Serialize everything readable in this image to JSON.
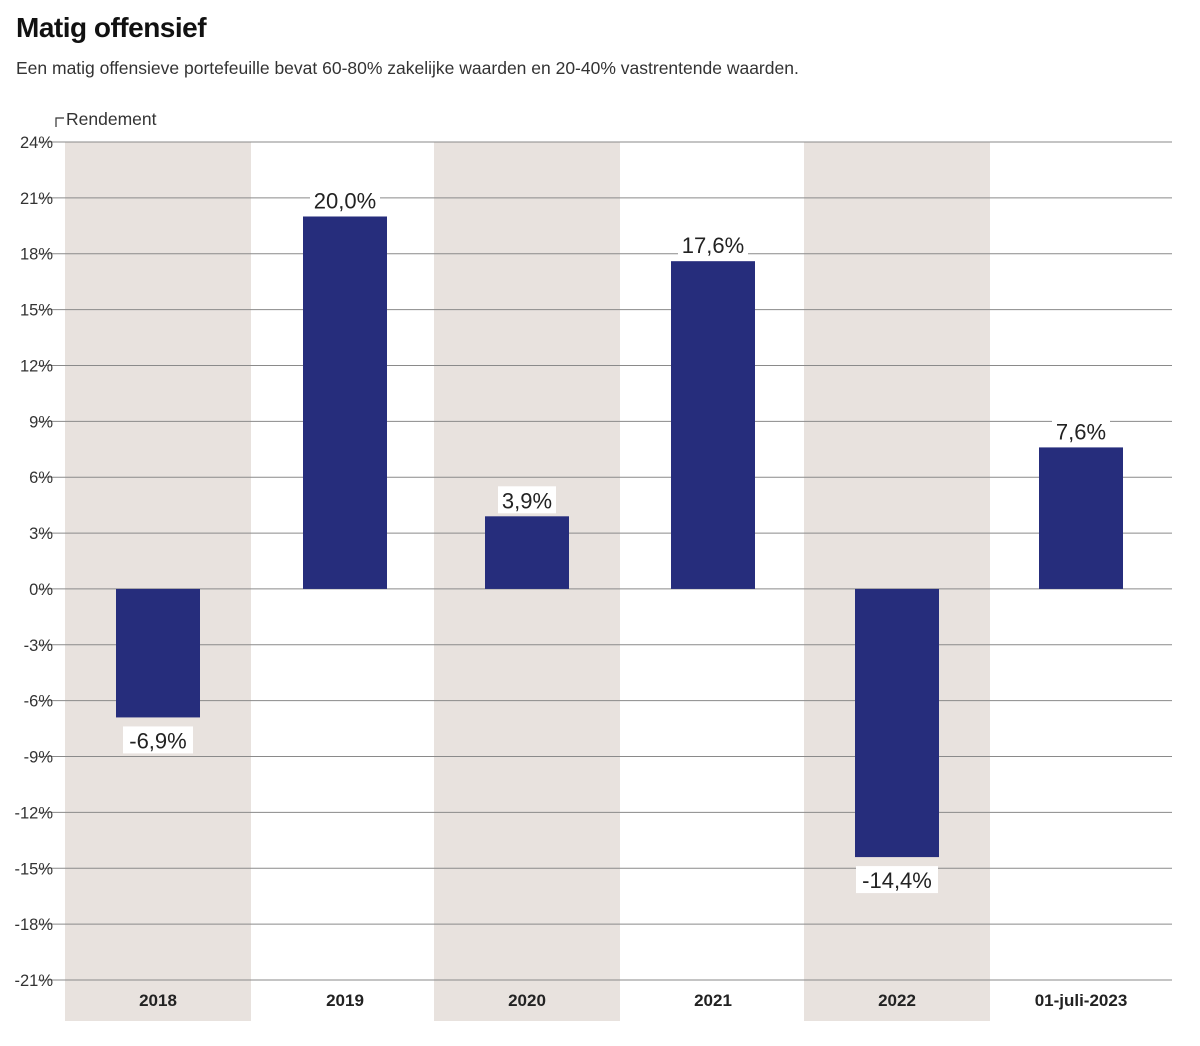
{
  "header": {
    "title": "Matig offensief",
    "subtitle": "Een matig offensieve portefeuille bevat 60-80% zakelijke waarden en 20-40% vastrentende waarden."
  },
  "chart_data": {
    "type": "bar",
    "title": "Matig offensief",
    "ylabel": "Rendement",
    "xlabel": "",
    "ylim": [
      -21,
      24
    ],
    "ytick_step": 3,
    "grid": true,
    "categories": [
      "2018",
      "2019",
      "2020",
      "2021",
      "2022",
      "01-juli-2023"
    ],
    "values": [
      -6.9,
      20.0,
      3.9,
      17.6,
      -14.4,
      7.6
    ],
    "value_labels": [
      "-6,9%",
      "20,0%",
      "3,9%",
      "17,6%",
      "-14,4%",
      "7,6%"
    ],
    "shaded_columns": [
      0,
      2,
      4
    ]
  },
  "colors": {
    "bar": "#262d7c",
    "shade": "#e8e2de",
    "grid": "#8a8a8a"
  }
}
